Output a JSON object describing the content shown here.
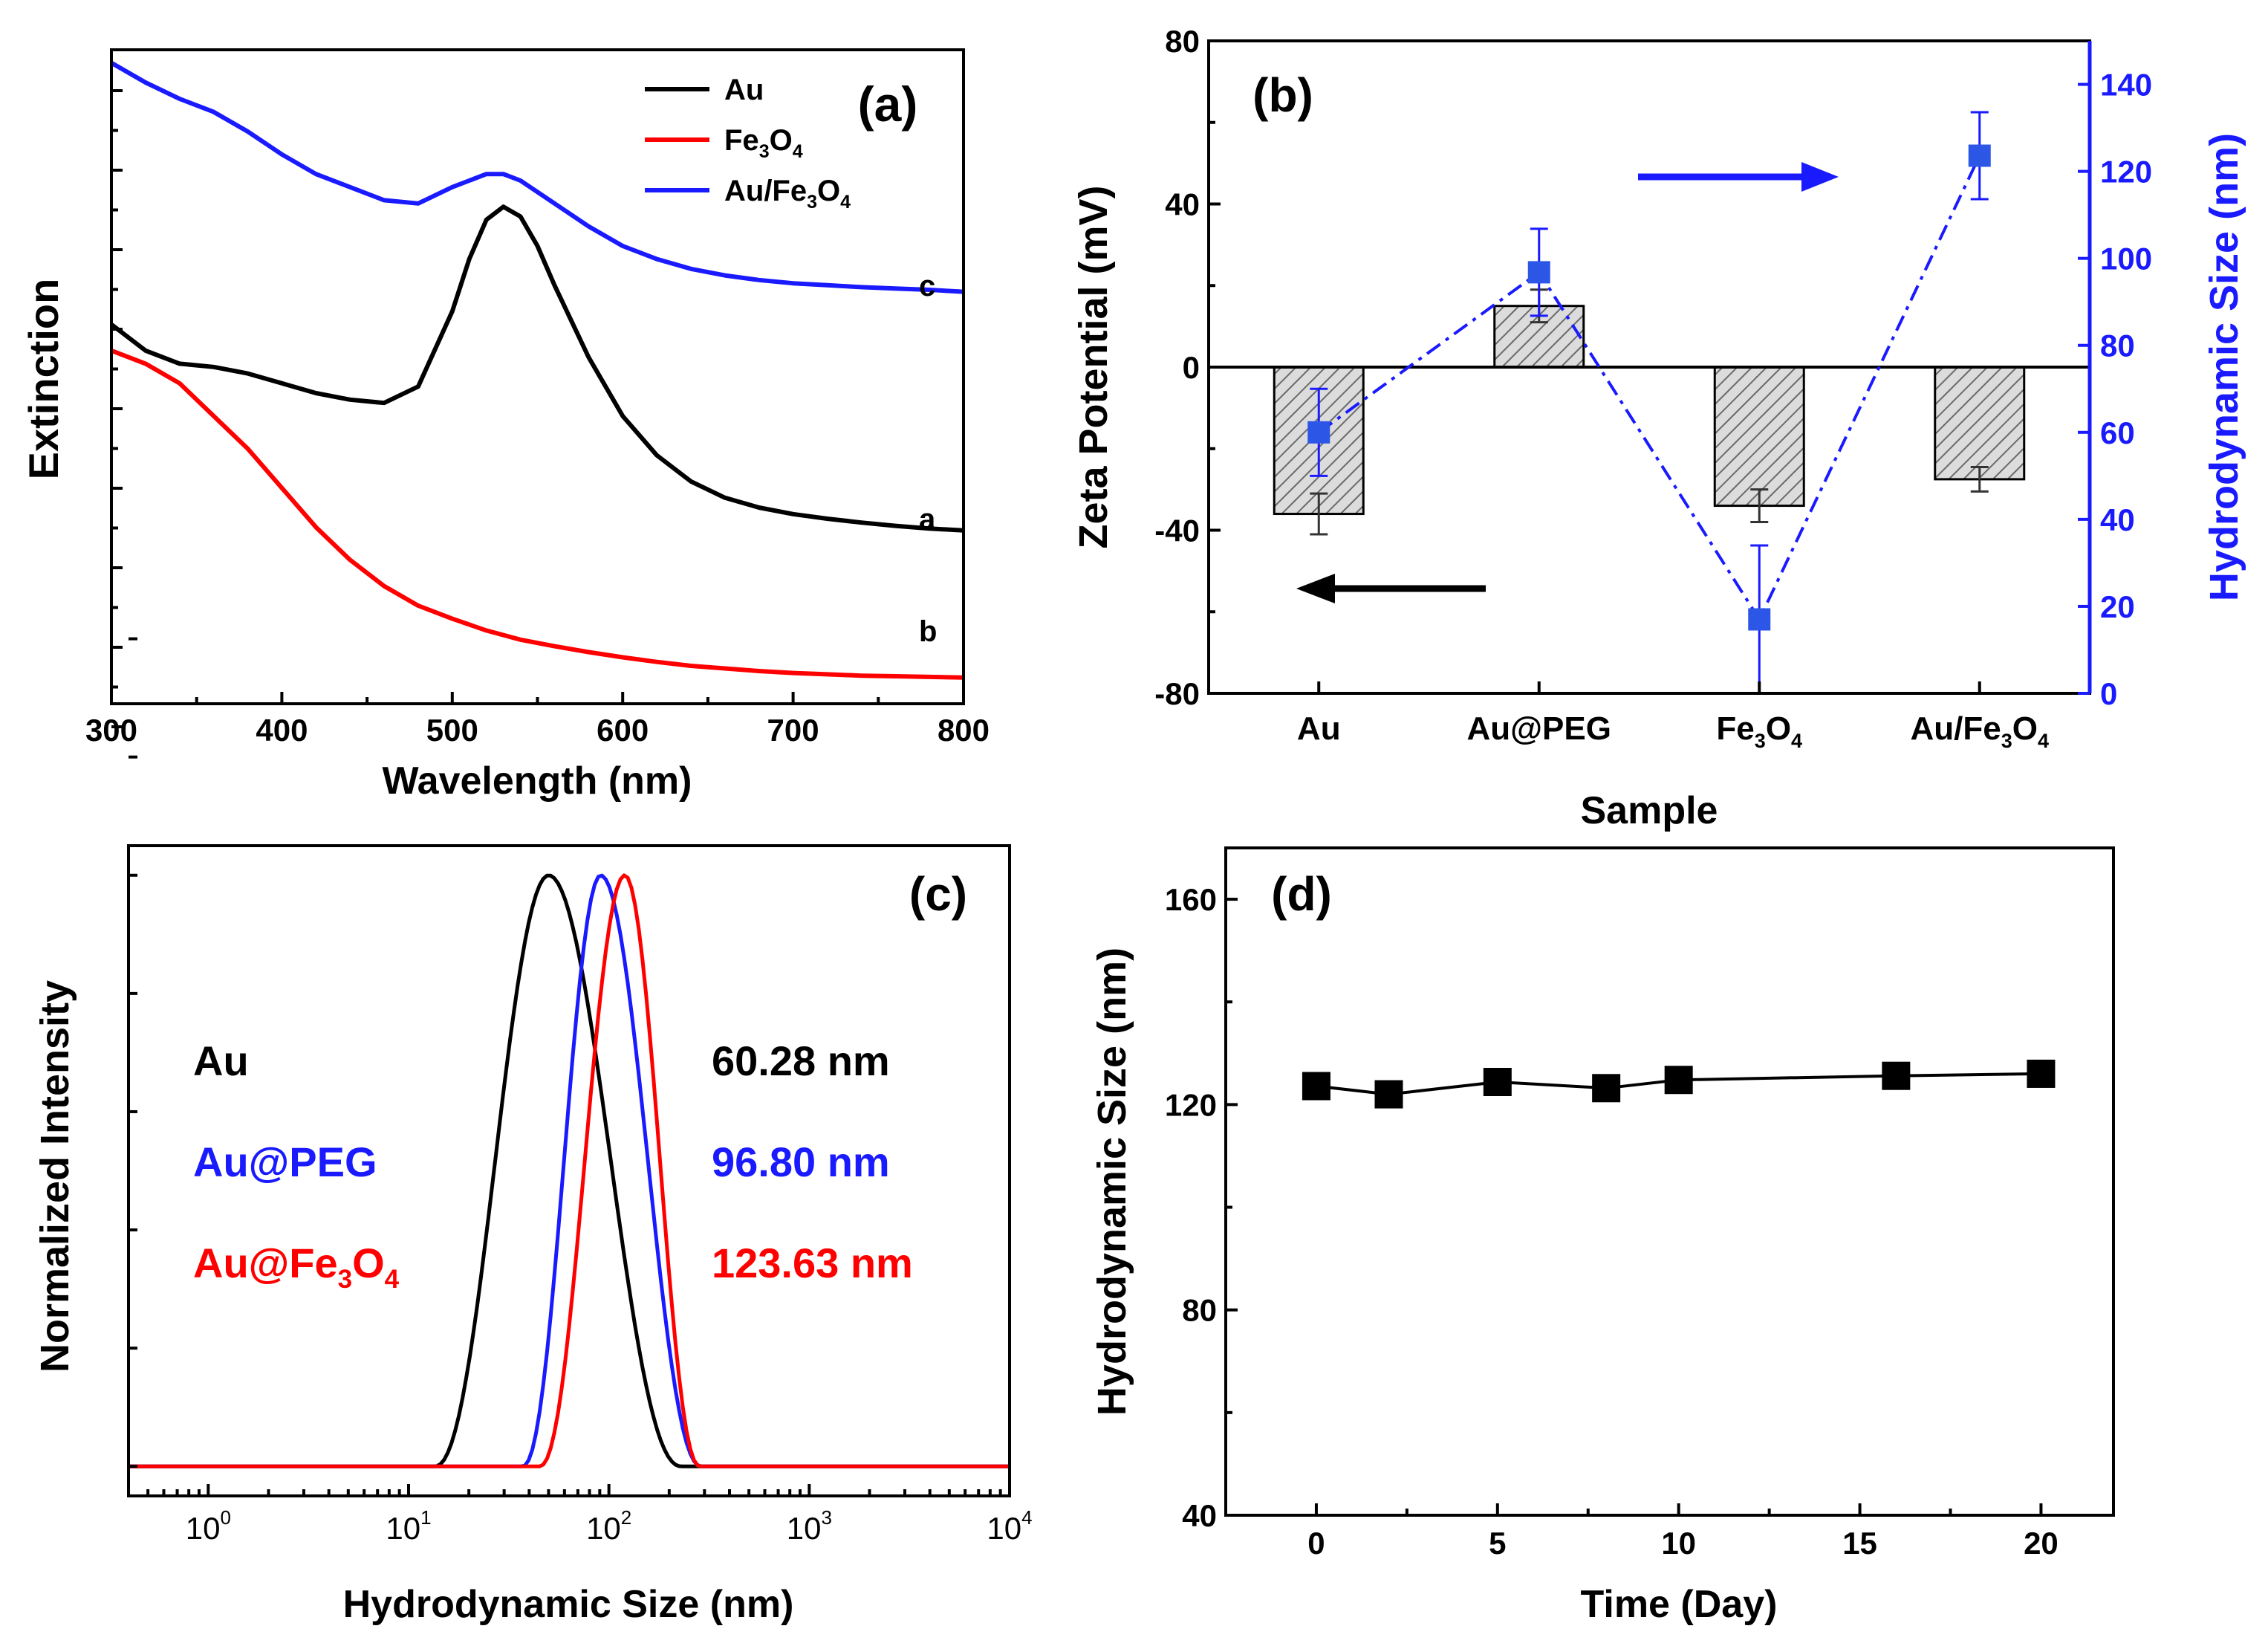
{
  "colors": {
    "black": "#000000",
    "red": "#ff0000",
    "blue": "#1a1aff",
    "marker_blue": "#2c57e6",
    "bar_hatch": "#777777",
    "bar_fill": "#dddddd"
  },
  "chart_data": [
    {
      "panel": "(a)",
      "type": "line",
      "xlabel": "Wavelength (nm)",
      "ylabel": "Extinction",
      "xlim": [
        300,
        800
      ],
      "ylim": [
        0,
        1
      ],
      "xticks": [
        "300",
        "400",
        "500",
        "600",
        "700",
        "800"
      ],
      "legend": [
        {
          "name": "Au",
          "color": "#000000"
        },
        {
          "name": "Fe",
          "sub1": "3",
          "mid": "O",
          "sub2": "4",
          "color": "#ff0000"
        },
        {
          "name": "Au/Fe",
          "sub1": "3",
          "mid": "O",
          "sub2": "4",
          "color": "#1a1aff"
        }
      ],
      "curve_labels": [
        "a",
        "b",
        "c"
      ],
      "series": [
        {
          "name": "Au",
          "label": "a",
          "color": "#000000",
          "x": [
            300,
            320,
            340,
            360,
            380,
            400,
            420,
            440,
            460,
            480,
            500,
            510,
            520,
            530,
            540,
            550,
            560,
            580,
            600,
            620,
            640,
            660,
            680,
            700,
            720,
            740,
            760,
            780,
            800
          ],
          "y": [
            0.58,
            0.54,
            0.52,
            0.515,
            0.505,
            0.49,
            0.475,
            0.465,
            0.46,
            0.485,
            0.6,
            0.68,
            0.74,
            0.76,
            0.745,
            0.7,
            0.64,
            0.53,
            0.44,
            0.38,
            0.34,
            0.315,
            0.3,
            0.29,
            0.283,
            0.277,
            0.272,
            0.268,
            0.265
          ]
        },
        {
          "name": "Fe3O4",
          "label": "b",
          "color": "#ff0000",
          "x": [
            300,
            320,
            340,
            360,
            380,
            400,
            420,
            440,
            460,
            480,
            500,
            520,
            540,
            560,
            580,
            600,
            620,
            640,
            660,
            680,
            700,
            720,
            740,
            760,
            780,
            800
          ],
          "y": [
            0.54,
            0.52,
            0.49,
            0.44,
            0.39,
            0.33,
            0.27,
            0.22,
            0.18,
            0.15,
            0.13,
            0.112,
            0.098,
            0.088,
            0.079,
            0.071,
            0.064,
            0.058,
            0.054,
            0.05,
            0.047,
            0.045,
            0.043,
            0.042,
            0.041,
            0.04
          ]
        },
        {
          "name": "Au/Fe3O4",
          "label": "c",
          "color": "#1a1aff",
          "x": [
            300,
            320,
            340,
            360,
            380,
            400,
            420,
            440,
            460,
            480,
            500,
            510,
            520,
            530,
            540,
            560,
            580,
            600,
            620,
            640,
            660,
            680,
            700,
            720,
            740,
            760,
            780,
            800
          ],
          "y": [
            0.98,
            0.95,
            0.925,
            0.905,
            0.875,
            0.84,
            0.81,
            0.79,
            0.77,
            0.765,
            0.79,
            0.8,
            0.81,
            0.81,
            0.8,
            0.765,
            0.73,
            0.7,
            0.68,
            0.665,
            0.655,
            0.648,
            0.643,
            0.64,
            0.637,
            0.635,
            0.633,
            0.63
          ]
        }
      ]
    },
    {
      "panel": "(b)",
      "type": "bar",
      "xlabel": "Sample",
      "ylabel": "Zeta Potential (mV)",
      "y2label": "Hydrodynamic Size (nm)",
      "categories": [
        {
          "name": "Au"
        },
        {
          "name": "Au@PEG"
        },
        {
          "name": "Fe",
          "sub1": "3",
          "mid": "O",
          "sub2": "4"
        },
        {
          "name": "Au/Fe",
          "sub1": "3",
          "mid": "O",
          "sub2": "4"
        }
      ],
      "ylim": [
        -80,
        80
      ],
      "yticks": [
        "-80",
        "-40",
        "0",
        "40",
        "80"
      ],
      "y2lim": [
        0,
        150
      ],
      "y2ticks": [
        "0",
        "20",
        "40",
        "60",
        "80",
        "100",
        "120",
        "140"
      ],
      "zeta": {
        "values": [
          -36,
          15,
          -34,
          -27.5
        ],
        "errors": [
          5,
          4,
          4,
          3
        ]
      },
      "size": {
        "values": [
          60,
          96.8,
          17,
          123.6
        ],
        "errors": [
          10,
          10,
          17,
          10
        ]
      }
    },
    {
      "panel": "(c)",
      "type": "line",
      "xscale": "log",
      "xlabel": "Hydrodynamic Size (nm)",
      "ylabel": "Normalized Intensity",
      "xlim": [
        0.4,
        10000
      ],
      "ylim": [
        -0.05,
        1.05
      ],
      "xticks": [
        {
          "base": "10",
          "exp": "0"
        },
        {
          "base": "10",
          "exp": "1"
        },
        {
          "base": "10",
          "exp": "2"
        },
        {
          "base": "10",
          "exp": "3"
        },
        {
          "base": "10",
          "exp": "4"
        }
      ],
      "annotations": [
        {
          "name": "Au",
          "value": "60.28 nm",
          "color": "#000000"
        },
        {
          "name": "Au@PEG",
          "value": "96.80 nm",
          "color": "#1a1aff"
        },
        {
          "name": "Au@Fe",
          "sub1": "3",
          "mid": "O",
          "sub2": "4",
          "value": "123.63 nm",
          "color": "#ff0000"
        }
      ],
      "series": [
        {
          "name": "Au",
          "color": "#000000",
          "peak": 50,
          "low": 13.5,
          "high": 230
        },
        {
          "name": "Au@PEG",
          "color": "#1a1aff",
          "peak": 91,
          "low": 37,
          "high": 290
        },
        {
          "name": "Au@Fe3O4",
          "color": "#ff0000",
          "peak": 120,
          "low": 45,
          "high": 285
        }
      ]
    },
    {
      "panel": "(d)",
      "type": "line",
      "xlabel": "Time (Day)",
      "ylabel": "Hydrodynamic Size (nm)",
      "xlim": [
        -2.5,
        22
      ],
      "ylim": [
        40,
        170
      ],
      "xticks": [
        "0",
        "5",
        "10",
        "15",
        "20"
      ],
      "yticks": [
        "40",
        "80",
        "120",
        "160"
      ],
      "x": [
        0,
        2,
        5,
        8,
        10,
        16,
        20
      ],
      "y": [
        123.6,
        122,
        124.4,
        123.2,
        124.8,
        125.6,
        126
      ]
    }
  ]
}
